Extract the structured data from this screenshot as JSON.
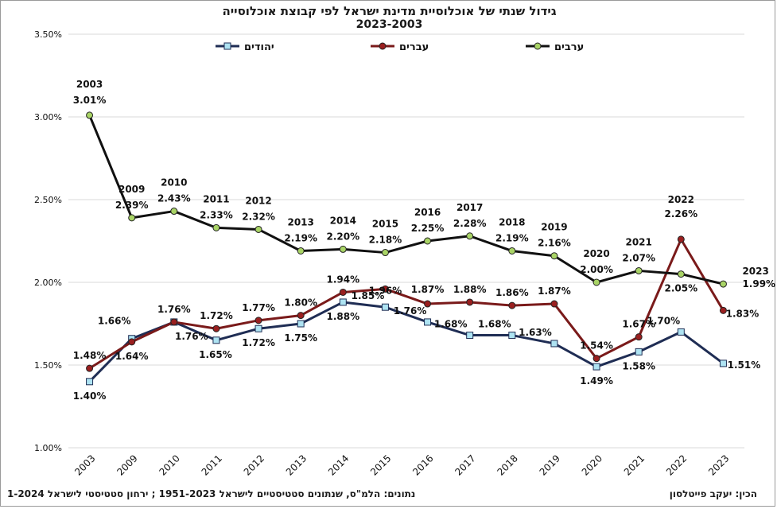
{
  "title": "גידול שנתי של אוכלוסיית מדינת ישראל לפי קבוצת אוכלוסייה",
  "subtitle": "2023-2003",
  "source_note": "נתונים: הלמ\"ס, שנתונים סטטיסטיים לישראל 1951-2023 ; ירחון סטטיסטי לישראל 1-2024",
  "author_note": "הכין: יעקב פייטלסון",
  "colors": {
    "jews": "#1f2d54",
    "jews_marker": "#aee3f2",
    "hebrews": "#7a1a1a",
    "hebrews_marker": "#9a1f1f",
    "arabs": "#111111",
    "arabs_marker": "#a9d466"
  },
  "chart_data": {
    "type": "line",
    "categories": [
      "2003",
      "2009",
      "2010",
      "2011",
      "2012",
      "2013",
      "2014",
      "2015",
      "2016",
      "2017",
      "2018",
      "2019",
      "2020",
      "2021",
      "2022",
      "2023"
    ],
    "ylim": [
      1.0,
      3.5
    ],
    "yticks": [
      "1.00%",
      "1.50%",
      "2.00%",
      "2.50%",
      "3.00%",
      "3.50%"
    ],
    "grid": true,
    "legend_position": "top",
    "series": [
      {
        "name": "יהודים",
        "values": [
          1.4,
          1.66,
          1.76,
          1.65,
          1.72,
          1.75,
          1.88,
          1.85,
          1.76,
          1.68,
          1.68,
          1.63,
          1.49,
          1.58,
          1.7,
          1.51
        ],
        "labels": [
          "1.40%",
          "1.66%",
          "1.76%",
          "1.65%",
          "1.72%",
          "1.75%",
          "1.88%",
          "1.85%",
          "1.76%",
          "1.68%",
          "1.68%",
          "1.63%",
          "1.49%",
          "1.58%",
          "1.70%",
          "1.51%"
        ]
      },
      {
        "name": "עברים",
        "values": [
          1.48,
          1.64,
          1.76,
          1.72,
          1.77,
          1.8,
          1.94,
          1.96,
          1.87,
          1.88,
          1.86,
          1.87,
          1.54,
          1.67,
          2.26,
          1.83
        ],
        "labels": [
          "1.48%",
          "1.64%",
          "1.76%",
          "1.72%",
          "1.77%",
          "1.80%",
          "1.94%",
          "1.96%",
          "1.87%",
          "1.88%",
          "1.86%",
          "1.87%",
          "1.54%",
          "1.67%",
          "",
          "1.83%"
        ]
      },
      {
        "name": "ערבים",
        "values": [
          3.01,
          2.39,
          2.43,
          2.33,
          2.32,
          2.19,
          2.2,
          2.18,
          2.25,
          2.28,
          2.19,
          2.16,
          2.0,
          2.07,
          2.05,
          1.99
        ],
        "labels": [
          "3.01%",
          "2.39%",
          "2.43%",
          "2.33%",
          "2.32%",
          "2.19%",
          "2.20%",
          "2.18%",
          "2.25%",
          "2.28%",
          "2.19%",
          "2.16%",
          "2.00%",
          "2.07%",
          "2.05%",
          "1.99%"
        ]
      }
    ],
    "year_annotations": [
      "2003",
      "2009",
      "2010",
      "2011",
      "2012",
      "2013",
      "2014",
      "2015",
      "2016",
      "2017",
      "2018",
      "2019",
      "2020",
      "2021",
      "2022",
      "2023"
    ],
    "extra_annotations": [
      {
        "year": "2022",
        "value_text": "2.26%"
      }
    ]
  }
}
